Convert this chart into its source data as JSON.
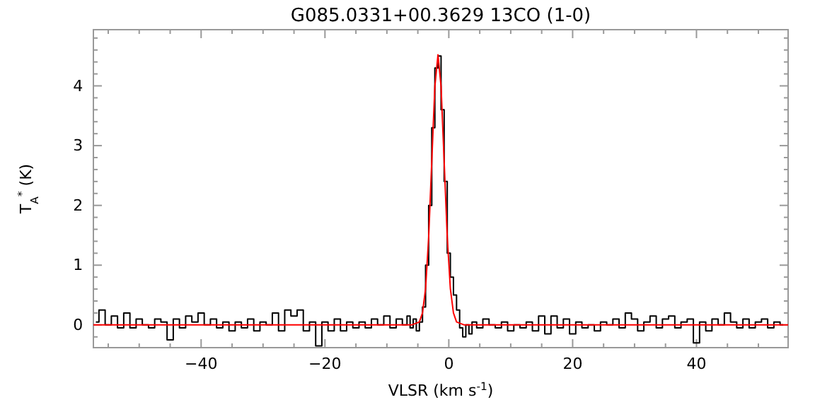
{
  "chart_data": {
    "type": "line",
    "title": "G085.0331+00.3629 13CO (1-0)",
    "xlabel": "VLSR (km s$^{-1}$)",
    "ylabel": "T$_{A}$$^{*}$ (K)",
    "xlim": [
      -57.4,
      54.8
    ],
    "ylim": [
      -0.38,
      4.94
    ],
    "xticks": [
      {
        "value": -55,
        "label": null
      },
      {
        "value": -50,
        "label": null
      },
      {
        "value": -45,
        "label": null
      },
      -40,
      {
        "value": -35,
        "label": null
      },
      {
        "value": -30,
        "label": null
      },
      {
        "value": -25,
        "label": null
      },
      -20,
      {
        "value": -15,
        "label": null
      },
      {
        "value": -10,
        "label": null
      },
      {
        "value": -5,
        "label": null
      },
      0,
      {
        "value": 5,
        "label": null
      },
      {
        "value": 10,
        "label": null
      },
      {
        "value": 15,
        "label": null
      },
      20,
      {
        "value": 25,
        "label": null
      },
      {
        "value": 30,
        "label": null
      },
      {
        "value": 35,
        "label": null
      },
      40,
      {
        "value": 45,
        "label": null
      },
      {
        "value": 50,
        "label": null
      }
    ],
    "yticks": [
      {
        "value": -0.2,
        "label": null
      },
      0,
      {
        "value": 0.2,
        "label": null
      },
      {
        "value": 0.4,
        "label": null
      },
      {
        "value": 0.6,
        "label": null
      },
      {
        "value": 0.8,
        "label": null
      },
      1,
      {
        "value": 1.2,
        "label": null
      },
      {
        "value": 1.4,
        "label": null
      },
      {
        "value": 1.6,
        "label": null
      },
      {
        "value": 1.8,
        "label": null
      },
      2,
      {
        "value": 2.2,
        "label": null
      },
      {
        "value": 2.4,
        "label": null
      },
      {
        "value": 2.6,
        "label": null
      },
      {
        "value": 2.8,
        "label": null
      },
      3,
      {
        "value": 3.2,
        "label": null
      },
      {
        "value": 3.4,
        "label": null
      },
      {
        "value": 3.6,
        "label": null
      },
      {
        "value": 3.8,
        "label": null
      },
      4,
      {
        "value": 4.2,
        "label": null
      },
      {
        "value": 4.4,
        "label": null
      },
      {
        "value": 4.6,
        "label": null
      },
      {
        "value": 4.8,
        "label": null
      }
    ],
    "grid": false,
    "series": [
      {
        "type": "step",
        "color": "#000000",
        "x": [
          -57,
          -56,
          -55,
          -54,
          -53,
          -52,
          -51,
          -50,
          -49,
          -48,
          -47,
          -46,
          -45,
          -44,
          -43,
          -42,
          -41,
          -40,
          -39,
          -38,
          -37,
          -36,
          -35,
          -34,
          -33,
          -32,
          -31,
          -30,
          -29,
          -28,
          -27,
          -26,
          -25,
          -24,
          -23,
          -22,
          -21,
          -20,
          -19,
          -18,
          -17,
          -16,
          -15,
          -14,
          -13,
          -12,
          -11,
          -10,
          -9,
          -8,
          -7,
          -6.5,
          -6,
          -5.5,
          -5,
          -4.5,
          -4,
          -3.5,
          -3,
          -2.5,
          -2,
          -1.5,
          -1,
          -0.5,
          0,
          0.5,
          1,
          1.5,
          2,
          2.5,
          3,
          3.5,
          4,
          5,
          6,
          7,
          8,
          9,
          10,
          11,
          12,
          13,
          14,
          15,
          16,
          17,
          18,
          19,
          20,
          21,
          22,
          23,
          24,
          25,
          26,
          27,
          28,
          29,
          30,
          31,
          32,
          33,
          34,
          35,
          36,
          37,
          38,
          39,
          40,
          41,
          42,
          43,
          44,
          45,
          46,
          47,
          48,
          49,
          50,
          51,
          52,
          53,
          54
        ],
        "values": [
          0.05,
          0.25,
          0.0,
          0.15,
          -0.05,
          0.2,
          -0.05,
          0.1,
          0.0,
          -0.05,
          0.1,
          0.05,
          -0.25,
          0.1,
          -0.05,
          0.15,
          0.05,
          0.2,
          0.0,
          0.1,
          -0.05,
          0.05,
          -0.1,
          0.05,
          -0.05,
          0.1,
          -0.1,
          0.05,
          0.0,
          0.2,
          -0.1,
          0.25,
          0.15,
          0.25,
          -0.1,
          0.05,
          -0.35,
          0.05,
          -0.1,
          0.1,
          -0.1,
          0.05,
          -0.05,
          0.05,
          -0.05,
          0.1,
          0.0,
          0.15,
          -0.05,
          0.1,
          0.0,
          0.15,
          -0.05,
          0.1,
          -0.1,
          0.05,
          0.3,
          1.0,
          2.0,
          3.3,
          4.3,
          4.5,
          3.6,
          2.4,
          1.2,
          0.8,
          0.5,
          0.25,
          -0.05,
          -0.2,
          0.0,
          -0.15,
          0.05,
          -0.05,
          0.1,
          0.0,
          -0.05,
          0.05,
          -0.1,
          0.0,
          -0.05,
          0.05,
          -0.1,
          0.15,
          -0.15,
          0.15,
          -0.05,
          0.1,
          -0.15,
          0.05,
          -0.05,
          0.0,
          -0.1,
          0.05,
          0.0,
          0.1,
          -0.05,
          0.2,
          0.1,
          -0.1,
          0.05,
          0.15,
          -0.05,
          0.1,
          0.15,
          -0.05,
          0.05,
          0.1,
          -0.3,
          0.05,
          -0.1,
          0.1,
          0.0,
          0.2,
          0.05,
          -0.05,
          0.1,
          -0.05,
          0.05,
          0.1,
          -0.05,
          0.05,
          0.0
        ]
      },
      {
        "type": "line",
        "color": "#ff0000",
        "x": [
          -57.4,
          -6,
          -4.75,
          -4.25,
          -3.75,
          -3.25,
          -2.75,
          -2.25,
          -1.75,
          -1.25,
          -0.75,
          -0.25,
          0.25,
          0.75,
          1.25,
          2.5,
          54.8
        ],
        "values": [
          0,
          0,
          0.05,
          0.2,
          0.61,
          1.47,
          2.74,
          3.99,
          4.52,
          3.99,
          2.74,
          1.47,
          0.61,
          0.2,
          0.05,
          0,
          0
        ]
      }
    ]
  }
}
